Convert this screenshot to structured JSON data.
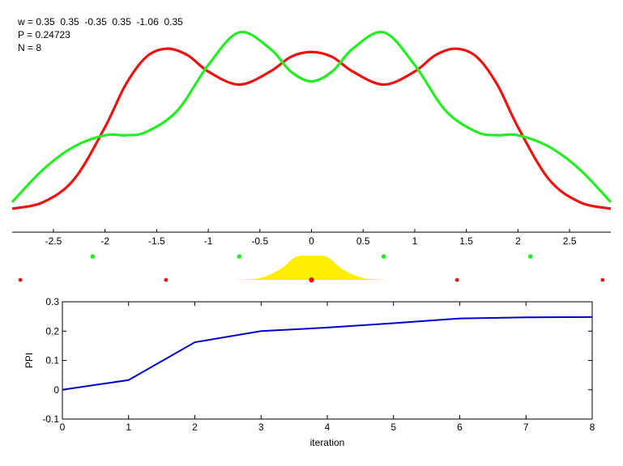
{
  "info": {
    "w_line": "w = 0.35  0.35  -0.35  0.35  -1.06  0.35",
    "p_line": "P = 0.24723",
    "n_line": "N = 8"
  },
  "colors": {
    "red_curve": "#ee1111",
    "green_curve": "#22ee22",
    "yellow_fill": "#ffee00",
    "ppi_line": "#0000cc",
    "axis": "#000000"
  },
  "chart_data": [
    {
      "type": "line",
      "title": "",
      "xlabel": "",
      "ylabel": "",
      "xlim": [
        -2.9,
        2.9
      ],
      "grid": false,
      "x_ticks": [
        "-2.5",
        "-2",
        "-1.5",
        "-1",
        "-0.5",
        "0",
        "0.5",
        "1",
        "1.5",
        "2",
        "2.5"
      ],
      "x_tick_values": [
        -2.5,
        -2,
        -1.5,
        -1,
        -0.5,
        0,
        0.5,
        1,
        1.5,
        2,
        2.5
      ],
      "series": [
        {
          "color": "red",
          "x": [
            -2.9,
            -2.6,
            -2.3,
            -2.0,
            -1.8,
            -1.6,
            -1.4,
            -1.2,
            -1.0,
            -0.7,
            -0.4,
            -0.2,
            0,
            0.2,
            0.4,
            0.7,
            1.0,
            1.2,
            1.4,
            1.6,
            1.8,
            2.0,
            2.3,
            2.6,
            2.9
          ],
          "y": [
            0.02,
            0.06,
            0.2,
            0.52,
            0.78,
            0.95,
            1.0,
            0.96,
            0.86,
            0.78,
            0.86,
            0.95,
            0.98,
            0.95,
            0.86,
            0.78,
            0.86,
            0.96,
            1.0,
            0.95,
            0.78,
            0.52,
            0.2,
            0.06,
            0.02
          ]
        },
        {
          "color": "green",
          "x": [
            -2.9,
            -2.6,
            -2.3,
            -2.0,
            -1.8,
            -1.6,
            -1.3,
            -1.0,
            -0.7,
            -0.4,
            -0.2,
            0,
            0.2,
            0.4,
            0.7,
            1.0,
            1.3,
            1.6,
            1.8,
            2.0,
            2.3,
            2.6,
            2.9
          ],
          "y": [
            0.06,
            0.26,
            0.4,
            0.47,
            0.47,
            0.49,
            0.62,
            0.9,
            1.1,
            1.0,
            0.86,
            0.8,
            0.86,
            1.0,
            1.1,
            0.9,
            0.62,
            0.49,
            0.47,
            0.47,
            0.4,
            0.26,
            0.06
          ]
        }
      ],
      "markers": {
        "green_x": [
          -2.12,
          -0.7,
          0.7,
          2.12
        ],
        "red_x": [
          -2.82,
          -1.41,
          0,
          1.41,
          2.82
        ]
      },
      "yellow_envelope": {
        "x": [
          -0.75,
          -0.5,
          -0.3,
          -0.15,
          0,
          0.15,
          0.3,
          0.5,
          0.75
        ],
        "y": [
          0.0,
          0.08,
          0.45,
          0.95,
          1.0,
          0.95,
          0.45,
          0.08,
          0.0
        ]
      }
    },
    {
      "type": "line",
      "title": "",
      "xlabel": "iteration",
      "ylabel": "PPI",
      "xlim": [
        0,
        8
      ],
      "ylim": [
        -0.1,
        0.3
      ],
      "grid": false,
      "x_ticks": [
        "0",
        "1",
        "2",
        "3",
        "4",
        "5",
        "6",
        "7",
        "8"
      ],
      "y_ticks": [
        "-0.1",
        "0",
        "0.1",
        "0.2",
        "0.3"
      ],
      "series": [
        {
          "x": [
            0,
            1,
            2,
            3,
            4,
            5,
            6,
            7,
            8
          ],
          "y": [
            0.0,
            0.033,
            0.162,
            0.2,
            0.212,
            0.227,
            0.243,
            0.247,
            0.248
          ]
        }
      ]
    }
  ]
}
